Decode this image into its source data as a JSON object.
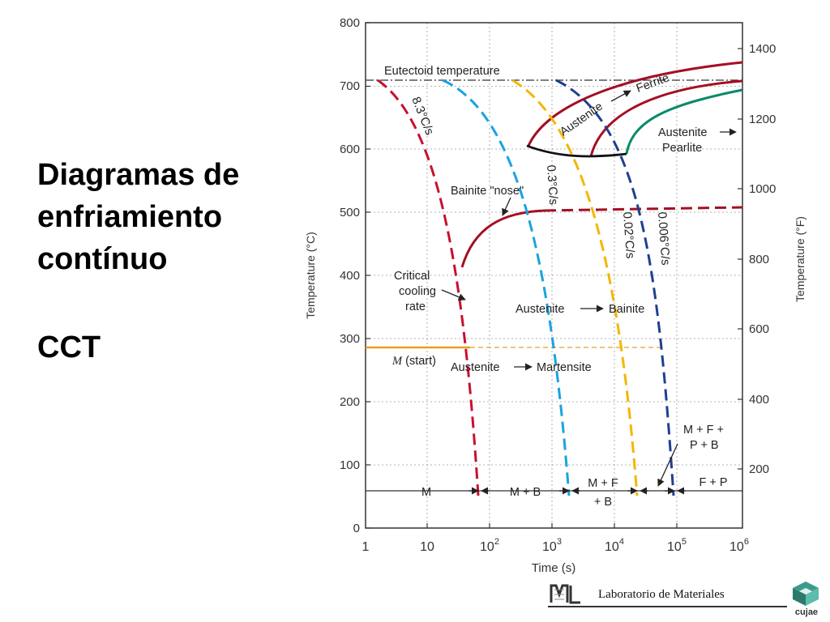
{
  "slide": {
    "title_lines": [
      "Diagramas de",
      "enfriamiento",
      "contínuo"
    ],
    "subtitle": "CCT"
  },
  "footer": {
    "lab_name": "Laboratorio de Materiales",
    "institution": "cujae",
    "lab_logo_icon": "lm-monogram-icon",
    "institution_logo_icon": "cube-logo-icon"
  },
  "diagram": {
    "axes": {
      "x_label": "Time (s)",
      "x_scale": "log",
      "x_ticks": [
        {
          "value": 1,
          "base": "1",
          "exp": ""
        },
        {
          "value": 10,
          "base": "10",
          "exp": ""
        },
        {
          "value": 100,
          "base": "10",
          "exp": "2"
        },
        {
          "value": 1000,
          "base": "10",
          "exp": "3"
        },
        {
          "value": 10000,
          "base": "10",
          "exp": "4"
        },
        {
          "value": 100000,
          "base": "10",
          "exp": "5"
        },
        {
          "value": 1000000,
          "base": "10",
          "exp": "6"
        }
      ],
      "y_left_label": "Temperature (°C)",
      "y_left_range": [
        0,
        800
      ],
      "y_left_ticks": [
        "0",
        "100",
        "200",
        "300",
        "400",
        "500",
        "600",
        "700",
        "800"
      ],
      "y_right_label": "Temperature (°F)",
      "y_right_ticks": [
        "200",
        "400",
        "600",
        "800",
        "1000",
        "1200",
        "1400"
      ],
      "grid": true
    },
    "labels": {
      "eutectoid": "Eutectoid temperature",
      "ferrite_austenite": "Austenite",
      "ferrite": "Ferrite",
      "pearlite_austenite": "Austenite",
      "pearlite": "Pearlite",
      "bainite_nose": "Bainite \"nose\"",
      "critical_1": "Critical",
      "critical_2": "cooling",
      "critical_3": "rate",
      "austenite_bainite": "Austenite",
      "bainite": "Bainite",
      "m_start_m": "M",
      "m_start_rest": "(start)",
      "austenite_martensite": "Austenite",
      "martensite": "Martensite",
      "mfpb_1": "M + F +",
      "mfpb_2": "P + B"
    },
    "cooling_rates": [
      {
        "label": "8.3°C/s",
        "color": "#c8102e"
      },
      {
        "label": "0.3°C/s",
        "color": "#1aa3de"
      },
      {
        "label": "0.02°C/s",
        "color": "#f2b705"
      },
      {
        "label": "0.006°C/s",
        "color": "#1f3f8f"
      }
    ],
    "microstructures": [
      "M",
      "M + B",
      "M + F",
      "+ B",
      "F + P"
    ],
    "colors": {
      "transformation_curve": "#a50f23",
      "pearlite_curve": "#0a8a6a",
      "m_start": "#e8a020",
      "axis": "#333333",
      "grid": "#9a9a9a"
    }
  }
}
